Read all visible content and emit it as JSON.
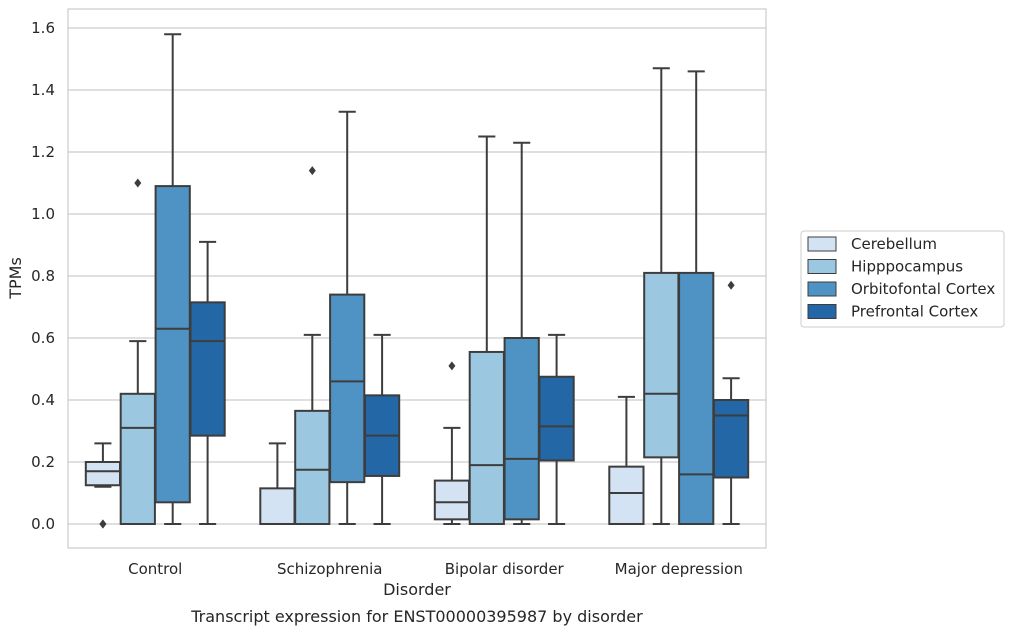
{
  "caption": "Transcript expression for ENST00000395987 by disorder",
  "chart_data": {
    "type": "box",
    "xlabel": "Disorder",
    "ylabel": "TPMs",
    "ylim": [
      -0.08,
      1.66
    ],
    "yticks": [
      "0.0",
      "0.2",
      "0.4",
      "0.6",
      "0.8",
      "1.0",
      "1.2",
      "1.4",
      "1.6"
    ],
    "grid": "horizontal",
    "legend_position": "right",
    "categories": [
      "Control",
      "Schizophrenia",
      "Bipolar disorder",
      "Major depression"
    ],
    "series": [
      {
        "name": "Cerebellum",
        "color": "#d4e3f3",
        "boxes": [
          {
            "whislo": 0.12,
            "q1": 0.125,
            "med": 0.17,
            "q3": 0.2,
            "whishi": 0.26,
            "fliers": [
              0.0,
              0.0
            ]
          },
          {
            "whislo": 0.0,
            "q1": 0.0,
            "med": 0.0,
            "q3": 0.115,
            "whishi": 0.26,
            "fliers": []
          },
          {
            "whislo": 0.0,
            "q1": 0.015,
            "med": 0.07,
            "q3": 0.14,
            "whishi": 0.31,
            "fliers": [
              0.51
            ]
          },
          {
            "whislo": 0.0,
            "q1": 0.0,
            "med": 0.1,
            "q3": 0.185,
            "whishi": 0.41,
            "fliers": []
          }
        ]
      },
      {
        "name": "Hipppocampus",
        "color": "#9cc7e0",
        "boxes": [
          {
            "whislo": 0.0,
            "q1": 0.0,
            "med": 0.31,
            "q3": 0.42,
            "whishi": 0.59,
            "fliers": [
              1.1
            ]
          },
          {
            "whislo": 0.0,
            "q1": 0.0,
            "med": 0.175,
            "q3": 0.365,
            "whishi": 0.61,
            "fliers": [
              1.14
            ]
          },
          {
            "whislo": 0.0,
            "q1": 0.0,
            "med": 0.19,
            "q3": 0.555,
            "whishi": 1.25,
            "fliers": []
          },
          {
            "whislo": 0.0,
            "q1": 0.215,
            "med": 0.42,
            "q3": 0.81,
            "whishi": 1.47,
            "fliers": []
          }
        ]
      },
      {
        "name": "Orbitofontal Cortex",
        "color": "#4f93c4",
        "boxes": [
          {
            "whislo": 0.0,
            "q1": 0.07,
            "med": 0.63,
            "q3": 1.09,
            "whishi": 1.58,
            "fliers": []
          },
          {
            "whislo": 0.0,
            "q1": 0.135,
            "med": 0.46,
            "q3": 0.74,
            "whishi": 1.33,
            "fliers": []
          },
          {
            "whislo": 0.0,
            "q1": 0.015,
            "med": 0.21,
            "q3": 0.6,
            "whishi": 1.23,
            "fliers": []
          },
          {
            "whislo": 0.0,
            "q1": 0.0,
            "med": 0.16,
            "q3": 0.81,
            "whishi": 1.46,
            "fliers": []
          }
        ]
      },
      {
        "name": "Prefrontal Cortex",
        "color": "#2467a6",
        "boxes": [
          {
            "whislo": 0.0,
            "q1": 0.285,
            "med": 0.59,
            "q3": 0.715,
            "whishi": 0.91,
            "fliers": []
          },
          {
            "whislo": 0.0,
            "q1": 0.155,
            "med": 0.285,
            "q3": 0.415,
            "whishi": 0.61,
            "fliers": []
          },
          {
            "whislo": 0.0,
            "q1": 0.205,
            "med": 0.315,
            "q3": 0.475,
            "whishi": 0.61,
            "fliers": []
          },
          {
            "whislo": 0.0,
            "q1": 0.15,
            "med": 0.35,
            "q3": 0.4,
            "whishi": 0.47,
            "fliers": [
              0.77
            ]
          }
        ]
      }
    ]
  }
}
